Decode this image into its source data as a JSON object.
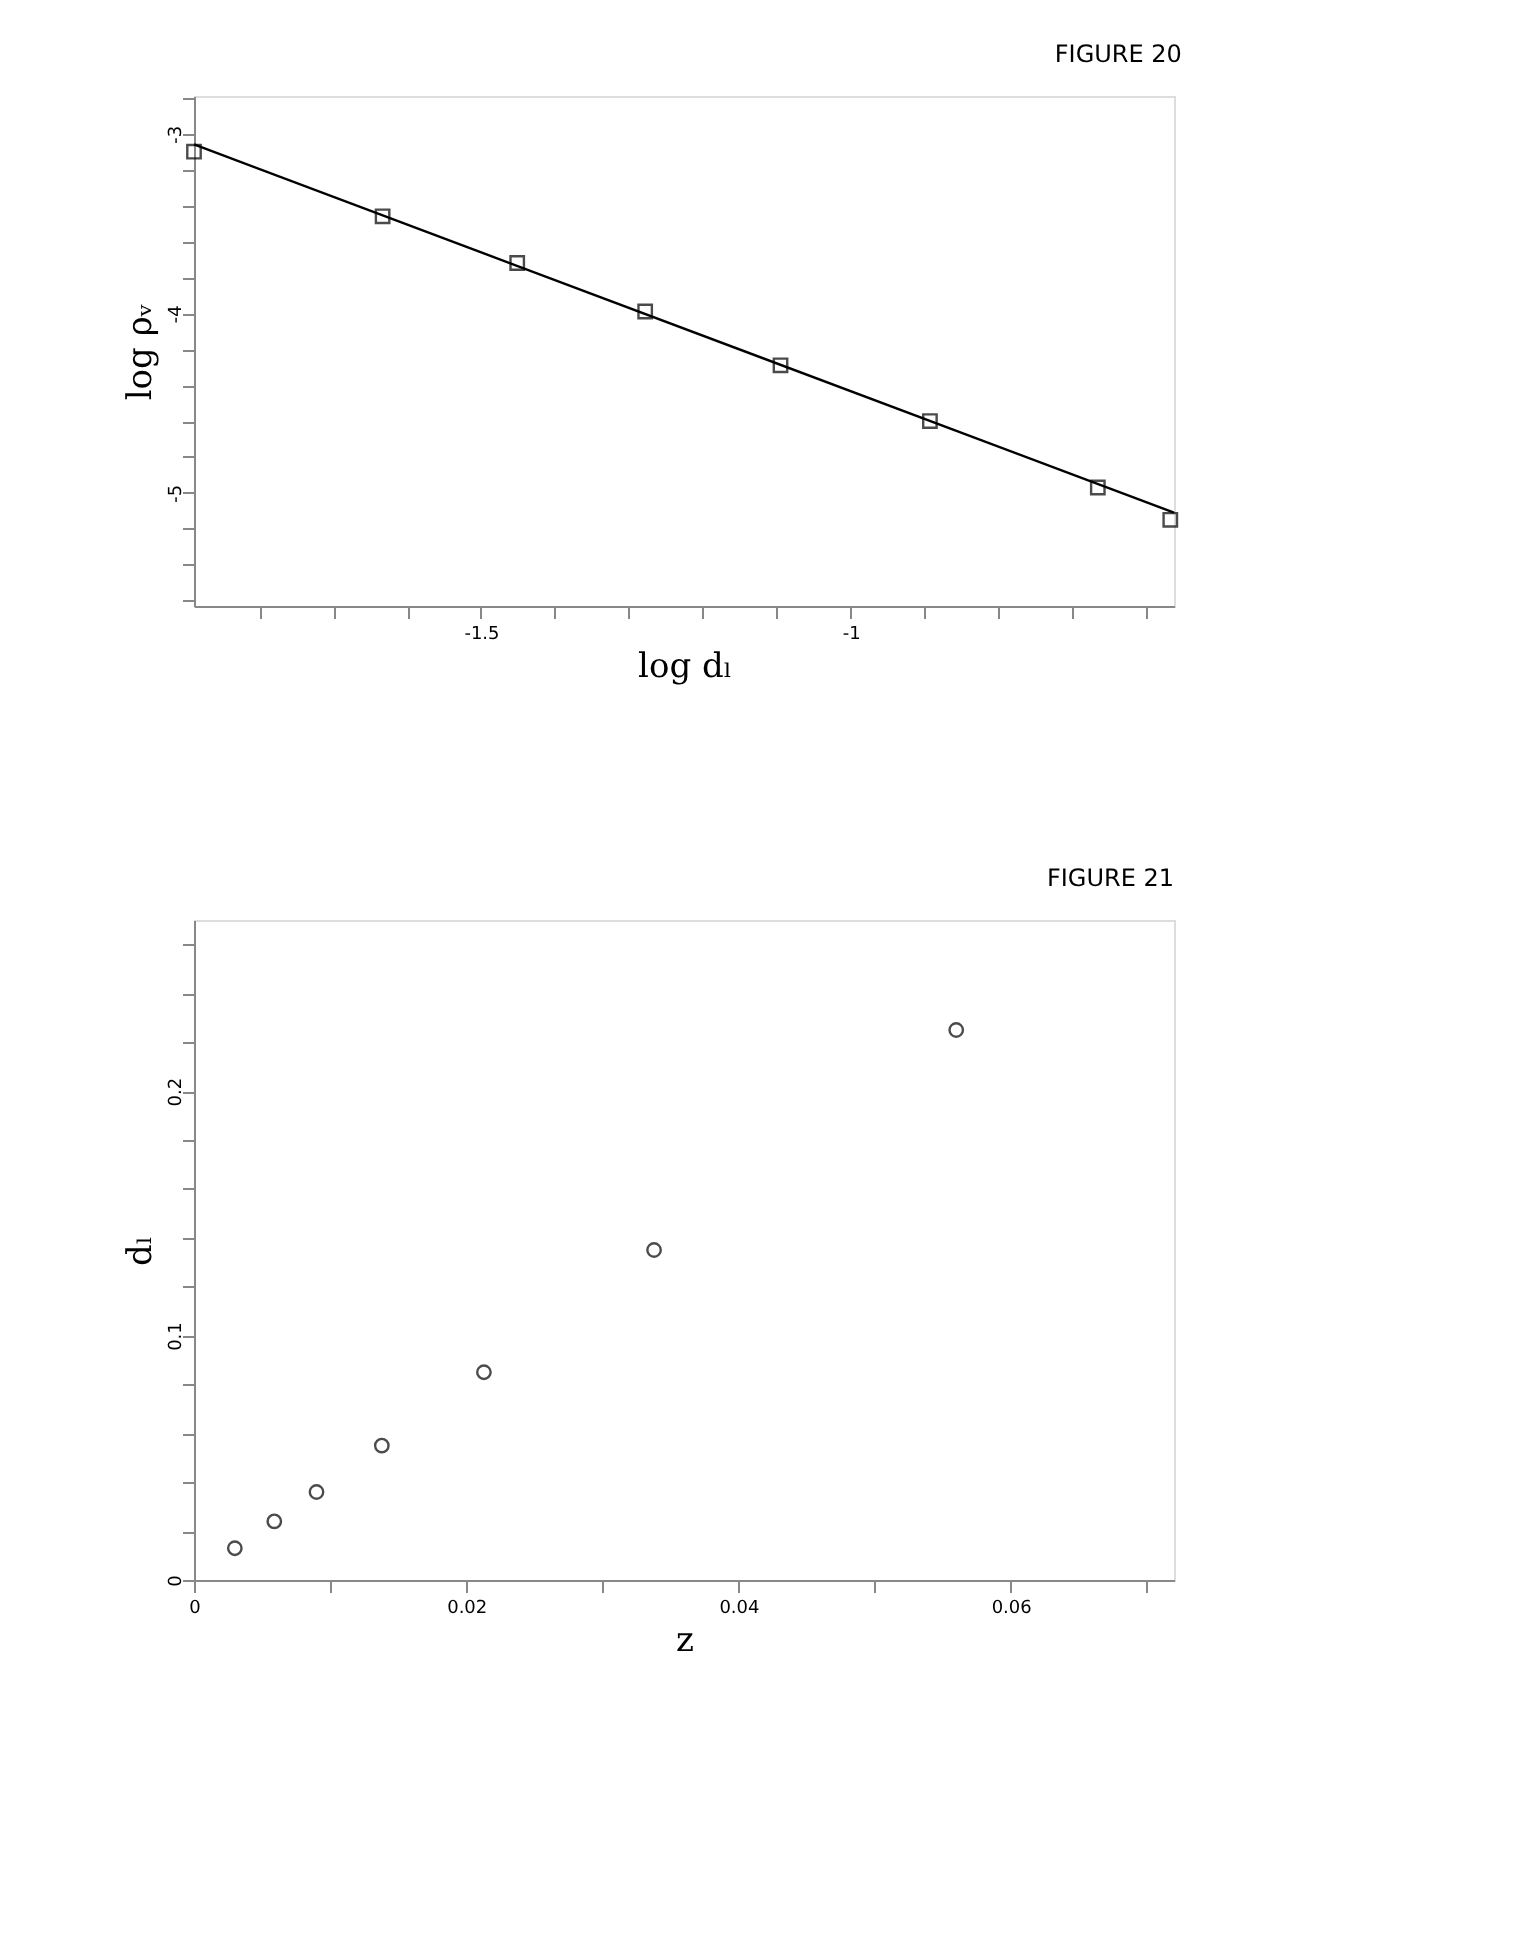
{
  "chart_data": [
    {
      "type": "scatter",
      "title": "FIGURE 20",
      "xlabel": "log dₗ",
      "ylabel": "log ρᵥ",
      "marker": "square",
      "grid": false,
      "xlim": [
        -1.888,
        -0.563
      ],
      "ylim": [
        -5.63,
        -2.79
      ],
      "xticks": [
        {
          "value": -1.8,
          "label": null
        },
        {
          "value": -1.7,
          "label": null
        },
        {
          "value": -1.6,
          "label": null
        },
        -1.5,
        {
          "value": -1.4,
          "label": null
        },
        {
          "value": -1.3,
          "label": null
        },
        {
          "value": -1.2,
          "label": null
        },
        {
          "value": -1.1,
          "label": null
        },
        -1,
        {
          "value": -0.9,
          "label": null
        },
        {
          "value": -0.8,
          "label": null
        },
        {
          "value": -0.7,
          "label": null
        },
        {
          "value": -0.6,
          "label": null
        }
      ],
      "yticks": [
        {
          "value": -5.6,
          "label": null
        },
        {
          "value": -5.4,
          "label": null
        },
        {
          "value": -5.2,
          "label": null
        },
        -5,
        {
          "value": -4.8,
          "label": null
        },
        {
          "value": -4.6,
          "label": null
        },
        {
          "value": -4.4,
          "label": null
        },
        {
          "value": -4.2,
          "label": null
        },
        -4,
        {
          "value": -3.8,
          "label": null
        },
        {
          "value": -3.6,
          "label": null
        },
        {
          "value": -3.4,
          "label": null
        },
        {
          "value": -3.2,
          "label": null
        },
        -3,
        {
          "value": -2.8,
          "label": null
        }
      ],
      "series": [
        {
          "type": "scatter",
          "color": "#000000",
          "x": [
            -1.888,
            -1.633,
            -1.451,
            -1.278,
            -1.095,
            -0.893,
            -0.666,
            -0.568
          ],
          "values": [
            -3.1,
            -3.46,
            -3.72,
            -3.99,
            -4.29,
            -4.6,
            -4.97,
            -5.15
          ]
        },
        {
          "type": "line",
          "color": "#000000",
          "marker": "none",
          "line_style": "solid",
          "x": [
            -1.888,
            -0.563
          ],
          "values": [
            -3.06,
            -5.11
          ]
        }
      ]
    },
    {
      "type": "scatter",
      "title": "FIGURE 21",
      "xlabel": "z",
      "ylabel": "dₗ",
      "marker": "circle",
      "grid": false,
      "xlim": [
        0,
        0.072
      ],
      "ylim": [
        0,
        0.27
      ],
      "xticks": [
        0,
        {
          "value": 0.01,
          "label": null
        },
        0.02,
        {
          "value": 0.03,
          "label": null
        },
        0.04,
        {
          "value": 0.05,
          "label": null
        },
        0.06,
        {
          "value": 0.07,
          "label": null
        }
      ],
      "yticks": [
        0,
        {
          "value": 0.02,
          "label": null
        },
        {
          "value": 0.04,
          "label": null
        },
        {
          "value": 0.06,
          "label": null
        },
        {
          "value": 0.08,
          "label": null
        },
        0.1,
        {
          "value": 0.12,
          "label": null
        },
        {
          "value": 0.14,
          "label": null
        },
        {
          "value": 0.16,
          "label": null
        },
        {
          "value": 0.18,
          "label": null
        },
        0.2,
        {
          "value": 0.22,
          "label": null
        },
        {
          "value": 0.24,
          "label": null
        },
        {
          "value": 0.26,
          "label": null
        }
      ],
      "series": [
        {
          "type": "scatter",
          "color": "#000000",
          "x": [
            0.003,
            0.0059,
            0.009,
            0.0138,
            0.0213,
            0.0338,
            0.056
          ],
          "values": [
            0.013,
            0.024,
            0.036,
            0.055,
            0.085,
            0.135,
            0.225
          ]
        }
      ]
    }
  ]
}
